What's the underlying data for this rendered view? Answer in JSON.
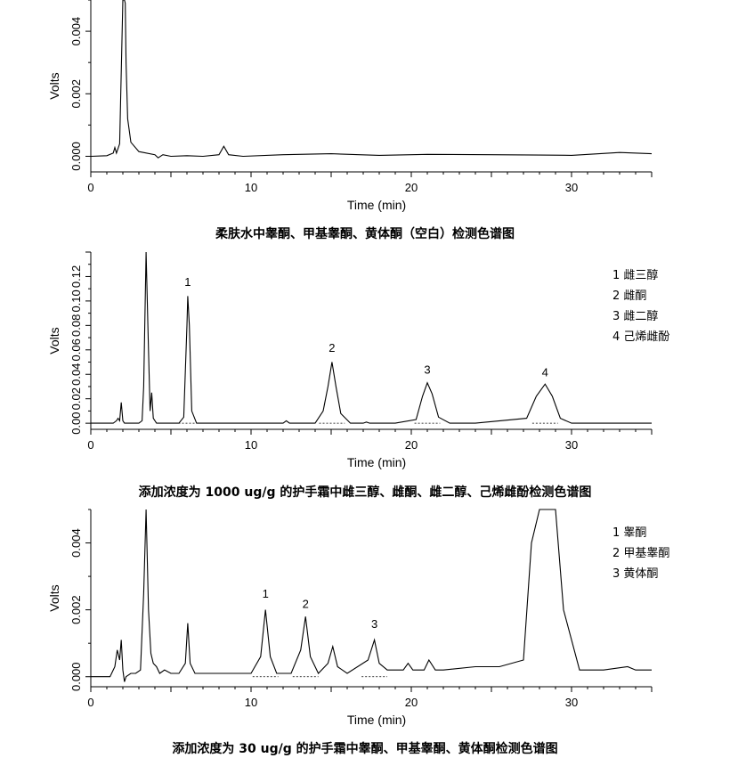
{
  "chart_data": [
    {
      "type": "line",
      "caption": "柔肤水中睾酮、甲基睾酮、黄体酮（空白）检测色谱图",
      "xlabel": "Time (min)",
      "ylabel": "Volts",
      "xlim": [
        0,
        35
      ],
      "ylim": [
        -0.0005,
        0.005
      ],
      "xticks": [
        0,
        10,
        20,
        30
      ],
      "xtick_labels": [
        "0",
        "10",
        "20",
        "30"
      ],
      "yticks": [
        0,
        0.002,
        0.004
      ],
      "ytick_labels": [
        "0.000",
        "0.002",
        "0.004"
      ],
      "legend": [],
      "peak_labels": [],
      "series": [
        {
          "x": [
            0,
            1.0,
            1.4,
            1.5,
            1.6,
            1.8,
            2.0,
            2.1,
            2.15,
            2.2,
            2.3,
            2.5,
            3.0,
            4.0,
            4.2,
            4.5,
            5,
            6,
            7,
            8.0,
            8.3,
            8.6,
            9.5,
            12,
            15,
            18,
            21,
            25,
            28,
            30,
            33,
            35
          ],
          "y": [
            0.0,
            2e-05,
            0.0001,
            0.00028,
            0.0001,
            0.0004,
            0.005,
            0.005,
            0.0049,
            0.003,
            0.0012,
            0.00045,
            0.00015,
            5e-05,
            -5e-05,
            5e-05,
            0.0,
            2e-05,
            0.0,
            5e-05,
            0.00032,
            5e-05,
            0.0,
            5e-05,
            8e-05,
            3e-05,
            6e-05,
            5e-05,
            4e-05,
            3e-05,
            0.00012,
            8e-05
          ]
        }
      ]
    },
    {
      "type": "line",
      "caption": "添加浓度为 1000 ug/g 的护手霜中雌三醇、雌酮、雌二醇、己烯雌酚检测色谱图",
      "xlabel": "Time (min)",
      "ylabel": "Volts",
      "xlim": [
        0,
        35
      ],
      "ylim": [
        -0.005,
        0.14
      ],
      "xticks": [
        0,
        10,
        20,
        30
      ],
      "xtick_labels": [
        "0",
        "10",
        "20",
        "30"
      ],
      "yticks": [
        0,
        0.02,
        0.04,
        0.06,
        0.08,
        0.1,
        0.12
      ],
      "ytick_labels": [
        "0.00",
        "0.02",
        "0.04",
        "0.06",
        "0.08",
        "0.10",
        "0.12"
      ],
      "legend": [
        "1  雌三醇",
        "2  雌酮",
        "3  雌二醇",
        "4  己烯雌酚"
      ],
      "peak_labels": [
        {
          "text": "1",
          "x": 6.05,
          "y": 0.108
        },
        {
          "text": "2",
          "x": 15.05,
          "y": 0.054
        },
        {
          "text": "3",
          "x": 21.0,
          "y": 0.036
        },
        {
          "text": "4",
          "x": 28.35,
          "y": 0.034
        }
      ],
      "series": [
        {
          "x": [
            0,
            1.4,
            1.6,
            1.7,
            1.8,
            1.9,
            2.0,
            2.1,
            2.3,
            3.0,
            3.2,
            3.3,
            3.45,
            3.6,
            3.7,
            3.8,
            3.9,
            4.1,
            5.5,
            5.8,
            6.0,
            6.05,
            6.15,
            6.3,
            6.6,
            8,
            10,
            12.0,
            12.2,
            12.4,
            14,
            14.5,
            14.8,
            15.05,
            15.3,
            15.6,
            16.2,
            17.0,
            17.2,
            17.4,
            19,
            20.3,
            20.7,
            21.0,
            21.3,
            21.7,
            22.4,
            24,
            27.2,
            27.8,
            28.35,
            28.8,
            29.3,
            30,
            35
          ],
          "y": [
            0.0,
            0.0,
            0.002,
            0.004,
            0.002,
            0.017,
            0.002,
            0.0,
            0.0,
            0.0,
            0.002,
            0.03,
            0.14,
            0.06,
            0.01,
            0.025,
            0.004,
            0.0,
            0.0,
            0.005,
            0.08,
            0.104,
            0.08,
            0.01,
            0.0,
            0.0,
            0.0,
            0.0,
            0.002,
            0.0,
            0.0,
            0.01,
            0.03,
            0.05,
            0.03,
            0.008,
            0.0,
            0.0,
            0.001,
            0.0,
            0.0,
            0.003,
            0.022,
            0.033,
            0.024,
            0.005,
            0.0,
            0.0,
            0.004,
            0.022,
            0.032,
            0.022,
            0.004,
            0.0,
            0.0
          ]
        }
      ]
    },
    {
      "type": "line",
      "caption": "添加浓度为 30 ug/g 的护手霜中睾酮、甲基睾酮、黄体酮检测色谱图",
      "xlabel": "Time (min)",
      "ylabel": "Volts",
      "xlim": [
        0,
        35
      ],
      "ylim": [
        -0.0003,
        0.005
      ],
      "xticks": [
        0,
        10,
        20,
        30
      ],
      "xtick_labels": [
        "0",
        "10",
        "20",
        "30"
      ],
      "yticks": [
        0,
        0.002,
        0.004
      ],
      "ytick_labels": [
        "0.000",
        "0.002",
        "0.004"
      ],
      "legend": [
        "1  睾酮",
        "2  甲基睾酮",
        "3  黄体酮"
      ],
      "peak_labels": [
        {
          "text": "1",
          "x": 10.9,
          "y": 0.0022
        },
        {
          "text": "2",
          "x": 13.4,
          "y": 0.0019
        },
        {
          "text": "3",
          "x": 17.7,
          "y": 0.0013
        }
      ],
      "series": [
        {
          "x": [
            0,
            1.2,
            1.5,
            1.65,
            1.8,
            1.9,
            2.0,
            2.1,
            2.2,
            2.5,
            2.8,
            3.1,
            3.3,
            3.45,
            3.6,
            3.75,
            3.9,
            4.1,
            4.3,
            4.6,
            5.0,
            5.5,
            5.9,
            6.05,
            6.2,
            6.5,
            7,
            8,
            9,
            10,
            10.6,
            10.9,
            11.2,
            11.6,
            12.5,
            13.1,
            13.4,
            13.7,
            14.2,
            14.8,
            15.1,
            15.4,
            16,
            17.3,
            17.7,
            18.0,
            18.5,
            19.5,
            19.8,
            20.1,
            20.8,
            21.1,
            21.5,
            22,
            24,
            25.5,
            27,
            27.5,
            28.0,
            28.5,
            29.0,
            29.5,
            30.5,
            32,
            33.5,
            34,
            35
          ],
          "y": [
            0.0,
            0.0,
            0.0003,
            0.0008,
            0.0005,
            0.0011,
            0.0002,
            -0.00015,
            0.0,
            0.0001,
            0.0001,
            0.0002,
            0.0025,
            0.005,
            0.002,
            0.0007,
            0.0004,
            0.0003,
            0.0001,
            0.0002,
            0.0001,
            0.0001,
            0.0004,
            0.0016,
            0.0004,
            0.0001,
            0.0001,
            0.0001,
            0.0001,
            0.0001,
            0.0006,
            0.002,
            0.0006,
            0.0001,
            0.0001,
            0.0008,
            0.0018,
            0.0006,
            0.0001,
            0.0004,
            0.0009,
            0.0003,
            0.0001,
            0.0005,
            0.0011,
            0.0004,
            0.0002,
            0.0002,
            0.0004,
            0.0002,
            0.0002,
            0.0005,
            0.0002,
            0.0002,
            0.0003,
            0.0003,
            0.0005,
            0.004,
            0.005,
            0.005,
            0.005,
            0.002,
            0.0002,
            0.0002,
            0.0003,
            0.0002,
            0.0002
          ]
        }
      ]
    }
  ]
}
